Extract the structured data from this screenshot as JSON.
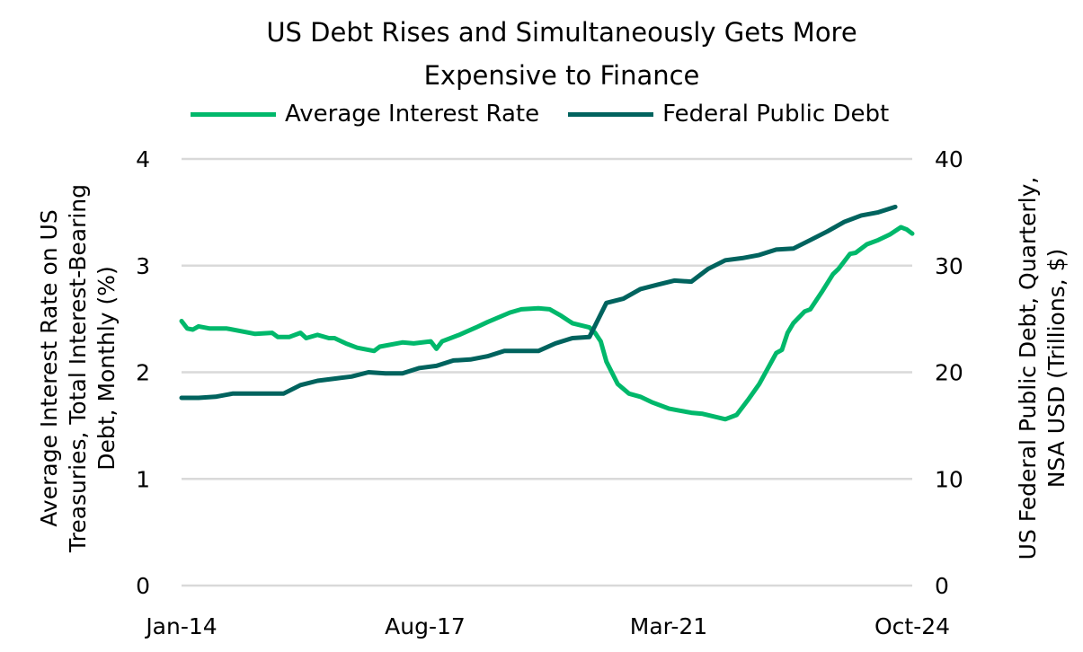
{
  "chart_data": {
    "type": "line",
    "title": "US Debt Rises and Simultaneously Gets More Expensive to Finance",
    "title_lines": [
      "US Debt Rises and Simultaneously Gets More",
      "Expensive to Finance"
    ],
    "legend_position": "top",
    "grid": true,
    "x_range": [
      "2014-01",
      "2024-10"
    ],
    "x_ticks": [
      {
        "date": "2014-01",
        "label": "Jan-14"
      },
      {
        "date": "2017-08",
        "label": "Aug-17"
      },
      {
        "date": "2021-03",
        "label": "Mar-21"
      },
      {
        "date": "2024-10",
        "label": "Oct-24"
      }
    ],
    "y_left": {
      "label_lines": [
        "Average Interest Rate on US",
        "Treasuries, Total Interest-Bearing",
        "Debt, Monthly (%)"
      ],
      "range": [
        0,
        4
      ],
      "ticks": [
        "0",
        "1",
        "2",
        "3",
        "4"
      ]
    },
    "y_right": {
      "label_lines": [
        "US Federal Public Debt, Quarterly,",
        "NSA USD (Trillions, $)"
      ],
      "range": [
        0,
        40
      ],
      "ticks": [
        "0",
        "10",
        "20",
        "30",
        "40"
      ]
    },
    "series": [
      {
        "name": "Average Interest Rate",
        "axis": "left",
        "color": "#00b86b",
        "points": [
          [
            "2014-01",
            2.48
          ],
          [
            "2014-02",
            2.41
          ],
          [
            "2014-03",
            2.4
          ],
          [
            "2014-04",
            2.43
          ],
          [
            "2014-06",
            2.41
          ],
          [
            "2014-09",
            2.41
          ],
          [
            "2015-01",
            2.37
          ],
          [
            "2015-02",
            2.36
          ],
          [
            "2015-05",
            2.37
          ],
          [
            "2015-06",
            2.33
          ],
          [
            "2015-08",
            2.33
          ],
          [
            "2015-10",
            2.37
          ],
          [
            "2015-11",
            2.32
          ],
          [
            "2016-01",
            2.35
          ],
          [
            "2016-03",
            2.32
          ],
          [
            "2016-04",
            2.32
          ],
          [
            "2016-06",
            2.27
          ],
          [
            "2016-08",
            2.23
          ],
          [
            "2016-11",
            2.2
          ],
          [
            "2016-12",
            2.24
          ],
          [
            "2017-04",
            2.28
          ],
          [
            "2017-06",
            2.27
          ],
          [
            "2017-09",
            2.29
          ],
          [
            "2017-10",
            2.22
          ],
          [
            "2017-11",
            2.29
          ],
          [
            "2018-02",
            2.35
          ],
          [
            "2018-05",
            2.42
          ],
          [
            "2018-07",
            2.47
          ],
          [
            "2018-11",
            2.56
          ],
          [
            "2019-01",
            2.59
          ],
          [
            "2019-04",
            2.6
          ],
          [
            "2019-06",
            2.59
          ],
          [
            "2019-08",
            2.53
          ],
          [
            "2019-10",
            2.46
          ],
          [
            "2020-01",
            2.42
          ],
          [
            "2020-02",
            2.37
          ],
          [
            "2020-03",
            2.29
          ],
          [
            "2020-04",
            2.1
          ],
          [
            "2020-06",
            1.89
          ],
          [
            "2020-08",
            1.8
          ],
          [
            "2020-10",
            1.77
          ],
          [
            "2020-12",
            1.72
          ],
          [
            "2021-03",
            1.66
          ],
          [
            "2021-05",
            1.64
          ],
          [
            "2021-07",
            1.62
          ],
          [
            "2021-09",
            1.61
          ],
          [
            "2022-01",
            1.56
          ],
          [
            "2022-03",
            1.6
          ],
          [
            "2022-05",
            1.74
          ],
          [
            "2022-07",
            1.89
          ],
          [
            "2022-10",
            2.18
          ],
          [
            "2022-11",
            2.21
          ],
          [
            "2022-12",
            2.37
          ],
          [
            "2023-01",
            2.46
          ],
          [
            "2023-03",
            2.57
          ],
          [
            "2023-04",
            2.59
          ],
          [
            "2023-06",
            2.75
          ],
          [
            "2023-08",
            2.92
          ],
          [
            "2023-09",
            2.97
          ],
          [
            "2023-11",
            3.11
          ],
          [
            "2023-12",
            3.12
          ],
          [
            "2024-02",
            3.2
          ],
          [
            "2024-04",
            3.24
          ],
          [
            "2024-06",
            3.29
          ],
          [
            "2024-08",
            3.36
          ],
          [
            "2024-09",
            3.34
          ],
          [
            "2024-10",
            3.3
          ]
        ]
      },
      {
        "name": "Federal Public Debt",
        "axis": "right",
        "color": "#00635e",
        "points": [
          [
            "2014-01",
            17.6
          ],
          [
            "2014-04",
            17.6
          ],
          [
            "2014-07",
            17.7
          ],
          [
            "2014-10",
            18.0
          ],
          [
            "2015-01",
            18.0
          ],
          [
            "2015-04",
            18.0
          ],
          [
            "2015-07",
            18.0
          ],
          [
            "2015-10",
            18.8
          ],
          [
            "2016-01",
            19.2
          ],
          [
            "2016-04",
            19.4
          ],
          [
            "2016-07",
            19.6
          ],
          [
            "2016-10",
            20.0
          ],
          [
            "2017-01",
            19.9
          ],
          [
            "2017-04",
            19.9
          ],
          [
            "2017-07",
            20.4
          ],
          [
            "2017-10",
            20.6
          ],
          [
            "2018-01",
            21.1
          ],
          [
            "2018-04",
            21.2
          ],
          [
            "2018-07",
            21.5
          ],
          [
            "2018-10",
            22.0
          ],
          [
            "2019-01",
            22.0
          ],
          [
            "2019-04",
            22.0
          ],
          [
            "2019-07",
            22.7
          ],
          [
            "2019-10",
            23.2
          ],
          [
            "2020-01",
            23.3
          ],
          [
            "2020-04",
            26.5
          ],
          [
            "2020-07",
            26.9
          ],
          [
            "2020-10",
            27.8
          ],
          [
            "2021-01",
            28.2
          ],
          [
            "2021-04",
            28.6
          ],
          [
            "2021-07",
            28.5
          ],
          [
            "2021-10",
            29.7
          ],
          [
            "2022-01",
            30.5
          ],
          [
            "2022-04",
            30.7
          ],
          [
            "2022-07",
            31.0
          ],
          [
            "2022-10",
            31.5
          ],
          [
            "2023-01",
            31.6
          ],
          [
            "2023-04",
            32.4
          ],
          [
            "2023-07",
            33.2
          ],
          [
            "2023-10",
            34.1
          ],
          [
            "2024-01",
            34.7
          ],
          [
            "2024-04",
            35.0
          ],
          [
            "2024-07",
            35.5
          ]
        ]
      }
    ]
  }
}
